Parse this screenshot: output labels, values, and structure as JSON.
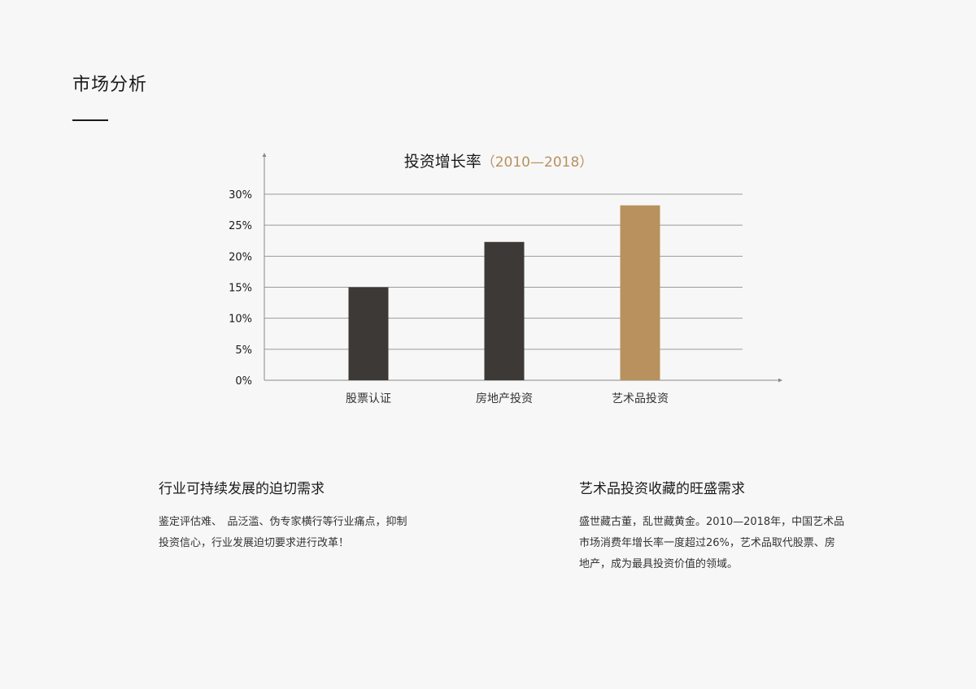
{
  "page": {
    "title": "市场分析"
  },
  "chart_data": {
    "type": "bar",
    "title": "投资增长率",
    "title_years": "（2010—2018）",
    "categories": [
      "股票认证",
      "房地产投资",
      "艺术品投资"
    ],
    "values": [
      15,
      22.3,
      28.2
    ],
    "bar_colors": [
      "#3d3937",
      "#3d3937",
      "#b8915e"
    ],
    "category_label_colors": [
      "#333333",
      "#333333",
      "#b8915e"
    ],
    "ylim": [
      0,
      30
    ],
    "yticks": [
      "0%",
      "5%",
      "10%",
      "15%",
      "20%",
      "25%",
      "30%"
    ],
    "ytick_values": [
      0,
      5,
      10,
      15,
      20,
      25,
      30
    ],
    "grid": true,
    "xlabel": "",
    "ylabel": ""
  },
  "sections": [
    {
      "heading": "行业可持续发展的迫切需求",
      "lines": [
        "鉴定评估难、　品泛滥、伪专家横行等行业痛点，抑制",
        "投资信心，行业发展迫切要求进行改革！"
      ]
    },
    {
      "heading": "艺术品投资收藏的旺盛需求",
      "lines": [
        "盛世藏古董，乱世藏黄金。2010—2018年，中国艺术品",
        "市场消费年增长率一度超过26%，艺术品取代股票、房",
        "地产，成为最具投资价值的领域。"
      ]
    }
  ],
  "colors": {
    "accent": "#b8915e",
    "dark_bar": "#3d3937",
    "grid": "#9a9a9a",
    "background": "#f7f7f7"
  }
}
